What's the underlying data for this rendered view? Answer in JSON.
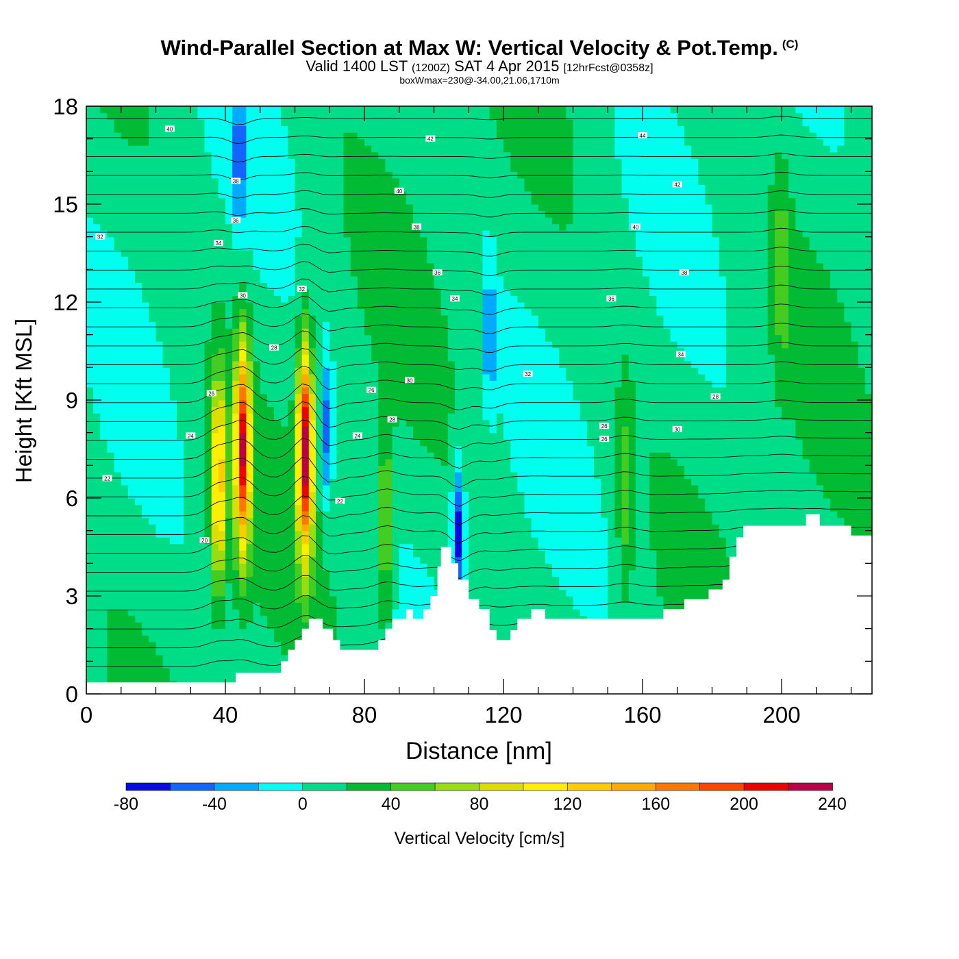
{
  "title": {
    "main": "Wind-Parallel Section at Max W: Vertical Velocity & Pot.Temp.",
    "copyright": "(C)",
    "valid_prefix": "Valid 1400 LST",
    "valid_utc": "(1200Z)",
    "valid_date": "SAT 4 Apr 2015",
    "forecast": "[12hrFcst@0358z]",
    "subtitle": "boxWmax=230@-34.00,21.06,1710m"
  },
  "chart_data": {
    "type": "heatmap",
    "xlabel": "Distance [nm]",
    "ylabel": "Height [Kft MSL]",
    "xlim": [
      0,
      226
    ],
    "ylim": [
      0,
      18
    ],
    "x_ticks": [
      0,
      40,
      80,
      120,
      160,
      200
    ],
    "y_ticks": [
      0,
      3,
      6,
      9,
      12,
      15,
      18
    ],
    "colorbar": {
      "label": "Vertical Velocity [cm/s]",
      "bounds": [
        -80,
        -60,
        -40,
        -20,
        0,
        20,
        40,
        60,
        80,
        100,
        120,
        140,
        160,
        180,
        200,
        220,
        240
      ],
      "tick_labels": [
        "-80",
        "-40",
        "0",
        "40",
        "80",
        "120",
        "160",
        "200",
        "240"
      ],
      "colors": [
        "#0a0ae6",
        "#1464ff",
        "#00aaff",
        "#00ffee",
        "#00dd88",
        "#00bb33",
        "#44cc22",
        "#99dd11",
        "#dddd00",
        "#ffee00",
        "#ffcc00",
        "#ffaa00",
        "#ff7700",
        "#ff4400",
        "#ee0000",
        "#bb0044"
      ]
    },
    "background_w": 10,
    "updrafts": [
      {
        "x": 38,
        "y": 6.5,
        "w": 140
      },
      {
        "x": 45,
        "y": 7.5,
        "w": 210
      },
      {
        "x": 63,
        "y": 7.5,
        "w": 230
      },
      {
        "x": 86,
        "y": 5.0,
        "w": 70
      },
      {
        "x": 155,
        "y": 6.0,
        "w": 50
      },
      {
        "x": 200,
        "y": 13.0,
        "w": 45
      }
    ],
    "downdrafts": [
      {
        "x": 69,
        "y": 8.0,
        "w": -45
      },
      {
        "x": 107,
        "y": 5.0,
        "w": -70
      },
      {
        "x": 116,
        "y": 11.0,
        "w": -35
      },
      {
        "x": 44,
        "y": 16.5,
        "w": -40
      }
    ],
    "theta_labels": [
      {
        "x": 24,
        "y": 17.3,
        "v": "40"
      },
      {
        "x": 99,
        "y": 17.0,
        "v": "42"
      },
      {
        "x": 160,
        "y": 17.1,
        "v": "44"
      },
      {
        "x": 43,
        "y": 15.7,
        "v": "38"
      },
      {
        "x": 90,
        "y": 15.4,
        "v": "40"
      },
      {
        "x": 170,
        "y": 15.6,
        "v": "42"
      },
      {
        "x": 43,
        "y": 14.5,
        "v": "36"
      },
      {
        "x": 95,
        "y": 14.3,
        "v": "38"
      },
      {
        "x": 158,
        "y": 14.3,
        "v": "40"
      },
      {
        "x": 4,
        "y": 14.0,
        "v": "32"
      },
      {
        "x": 38,
        "y": 13.8,
        "v": "34"
      },
      {
        "x": 101,
        "y": 12.9,
        "v": "36"
      },
      {
        "x": 172,
        "y": 12.9,
        "v": "38"
      },
      {
        "x": 45,
        "y": 12.2,
        "v": "30"
      },
      {
        "x": 62,
        "y": 12.4,
        "v": "32"
      },
      {
        "x": 106,
        "y": 12.1,
        "v": "34"
      },
      {
        "x": 151,
        "y": 12.1,
        "v": "36"
      },
      {
        "x": 54,
        "y": 10.6,
        "v": "28"
      },
      {
        "x": 171,
        "y": 10.4,
        "v": "34"
      },
      {
        "x": 127,
        "y": 9.8,
        "v": "32"
      },
      {
        "x": 93,
        "y": 9.6,
        "v": "30"
      },
      {
        "x": 36,
        "y": 9.2,
        "v": "26"
      },
      {
        "x": 82,
        "y": 9.3,
        "v": "26"
      },
      {
        "x": 181,
        "y": 9.1,
        "v": "28"
      },
      {
        "x": 88,
        "y": 8.4,
        "v": "28"
      },
      {
        "x": 149,
        "y": 8.2,
        "v": "26"
      },
      {
        "x": 170,
        "y": 8.1,
        "v": "30"
      },
      {
        "x": 30,
        "y": 7.9,
        "v": "24"
      },
      {
        "x": 78,
        "y": 7.9,
        "v": "24"
      },
      {
        "x": 149,
        "y": 7.8,
        "v": "26"
      },
      {
        "x": 6,
        "y": 6.6,
        "v": "22"
      },
      {
        "x": 73,
        "y": 5.9,
        "v": "22"
      },
      {
        "x": 34,
        "y": 4.7,
        "v": "20"
      }
    ],
    "terrain": [
      [
        0,
        0.35
      ],
      [
        43,
        0.35
      ],
      [
        43,
        0.65
      ],
      [
        56,
        0.65
      ],
      [
        56,
        1.0
      ],
      [
        58,
        1.0
      ],
      [
        58,
        1.35
      ],
      [
        60,
        1.35
      ],
      [
        60,
        1.65
      ],
      [
        62,
        1.65
      ],
      [
        62,
        2.0
      ],
      [
        64,
        2.0
      ],
      [
        64,
        2.3
      ],
      [
        68,
        2.3
      ],
      [
        68,
        2.0
      ],
      [
        71,
        2.0
      ],
      [
        71,
        1.65
      ],
      [
        73,
        1.65
      ],
      [
        73,
        1.35
      ],
      [
        84,
        1.35
      ],
      [
        84,
        1.65
      ],
      [
        86,
        1.65
      ],
      [
        86,
        2.0
      ],
      [
        88,
        2.0
      ],
      [
        88,
        2.3
      ],
      [
        92,
        2.3
      ],
      [
        92,
        2.6
      ],
      [
        94,
        2.6
      ],
      [
        94,
        2.3
      ],
      [
        97,
        2.3
      ],
      [
        97,
        2.6
      ],
      [
        99,
        2.6
      ],
      [
        99,
        3.0
      ],
      [
        101,
        3.0
      ],
      [
        101,
        3.9
      ],
      [
        102,
        3.9
      ],
      [
        102,
        4.5
      ],
      [
        105,
        4.5
      ],
      [
        105,
        4.0
      ],
      [
        107,
        4.0
      ],
      [
        107,
        3.5
      ],
      [
        110,
        3.5
      ],
      [
        110,
        2.9
      ],
      [
        113,
        2.9
      ],
      [
        113,
        2.6
      ],
      [
        116,
        2.6
      ],
      [
        116,
        1.95
      ],
      [
        118,
        1.95
      ],
      [
        118,
        1.65
      ],
      [
        122,
        1.65
      ],
      [
        122,
        1.95
      ],
      [
        124,
        1.95
      ],
      [
        124,
        2.3
      ],
      [
        128,
        2.3
      ],
      [
        128,
        2.6
      ],
      [
        132,
        2.6
      ],
      [
        132,
        2.3
      ],
      [
        138,
        2.3
      ],
      [
        138,
        2.6
      ],
      [
        138,
        2.3
      ],
      [
        166,
        2.3
      ],
      [
        166,
        2.6
      ],
      [
        172,
        2.6
      ],
      [
        172,
        2.9
      ],
      [
        179,
        2.9
      ],
      [
        179,
        3.2
      ],
      [
        183,
        3.2
      ],
      [
        183,
        3.5
      ],
      [
        185,
        3.5
      ],
      [
        185,
        4.2
      ],
      [
        187,
        4.2
      ],
      [
        187,
        4.8
      ],
      [
        189,
        4.8
      ],
      [
        189,
        5.15
      ],
      [
        207,
        5.15
      ],
      [
        207,
        5.5
      ],
      [
        211,
        5.5
      ],
      [
        211,
        5.15
      ],
      [
        220,
        5.15
      ],
      [
        220,
        4.85
      ],
      [
        226,
        4.85
      ]
    ]
  }
}
